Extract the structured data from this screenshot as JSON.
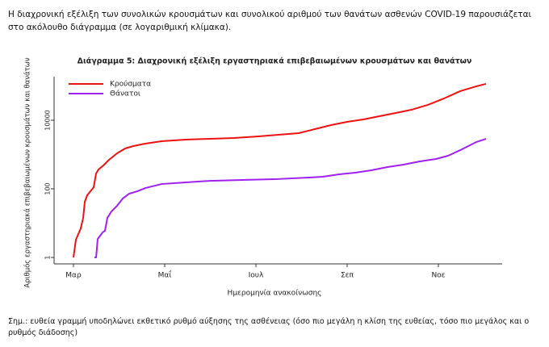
{
  "intro": "Η διαχρονική εξέλιξη των συνολικών κρουσμάτων και συνολικού αριθμού των θανάτων ασθενών COVID-19 παρουσιάζεται στο ακόλουθο διάγραμμα (σε λογαριθμική κλίμακα).",
  "note": "Σημ.: ευθεία γραμμή υποδηλώνει εκθετικό ρυθμό αύξησης της ασθένειας (όσο πιο μεγάλη η κλίση της ευθείας, τόσο πιο μεγάλος και ο ρυθμός διάδοσης)",
  "chart_data": {
    "type": "line",
    "title": "Διάγραμμα 5: Διαχρονική εξέλιξη εργαστηριακά επιβεβαιωμένων κρουσμάτων και θανάτων",
    "x_label": "Ημερομηνία ανακοίνωσης",
    "y_label": "Αριθμός εργαστηριακά επιβεβαιωμένων κρουσμάτων και θανάτων",
    "log_y": true,
    "legend": "upper-left",
    "xlim": [
      2.575,
      12.186
    ],
    "xticks": [
      {
        "value": 3,
        "label": "Μαρ"
      },
      {
        "value": 5,
        "label": "Μαΐ"
      },
      {
        "value": 7,
        "label": "Ιουλ"
      },
      {
        "value": 9,
        "label": "Σεπ"
      },
      {
        "value": 11,
        "label": "Νοε"
      }
    ],
    "ylim": [
      0.65,
      186000
    ],
    "yticks": [
      1,
      100,
      10000
    ],
    "series": [
      {
        "name": "Κρούσματα",
        "color": "#ee1111",
        "x": [
          3,
          3.053,
          3.106,
          3.159,
          3.212,
          3.248,
          3.301,
          3.372,
          3.442,
          3.496,
          3.549,
          3.655,
          3.779,
          3.956,
          4.133,
          4.31,
          4.575,
          4.929,
          5.46,
          5.991,
          6.522,
          7.053,
          7.496,
          7.938,
          8.292,
          8.646,
          9,
          9.354,
          9.708,
          10.062,
          10.416,
          10.77,
          11.124,
          11.478,
          11.832,
          12.044
        ],
        "values": [
          1,
          3.3,
          4.8,
          7,
          14,
          42,
          65,
          85,
          111,
          280,
          367,
          481,
          703,
          1085,
          1500,
          1767,
          2080,
          2445,
          2725,
          2875,
          3035,
          3380,
          3770,
          4205,
          5510,
          7225,
          8970,
          10560,
          13120,
          16290,
          20230,
          28000,
          43150,
          70300,
          97300,
          114600
        ]
      },
      {
        "name": "Θάνατοι",
        "color": "#a020f0",
        "x": [
          3.46,
          3.496,
          3.531,
          3.584,
          3.637,
          3.69,
          3.743,
          3.832,
          3.956,
          4.08,
          4.221,
          4.398,
          4.575,
          4.929,
          5.46,
          5.991,
          6.699,
          7.407,
          8.115,
          8.469,
          8.823,
          9.177,
          9.531,
          9.885,
          10.239,
          10.593,
          10.947,
          11.212,
          11.478,
          11.832,
          12.044
        ],
        "values": [
          1,
          1,
          3.45,
          4.3,
          5.35,
          6,
          14.2,
          21.9,
          32.1,
          52.3,
          72.3,
          84.9,
          105.3,
          138,
          154,
          171,
          181,
          191,
          212,
          225,
          265,
          295,
          348,
          432,
          508,
          631,
          743,
          921,
          1340,
          2310,
          2870
        ]
      }
    ]
  }
}
